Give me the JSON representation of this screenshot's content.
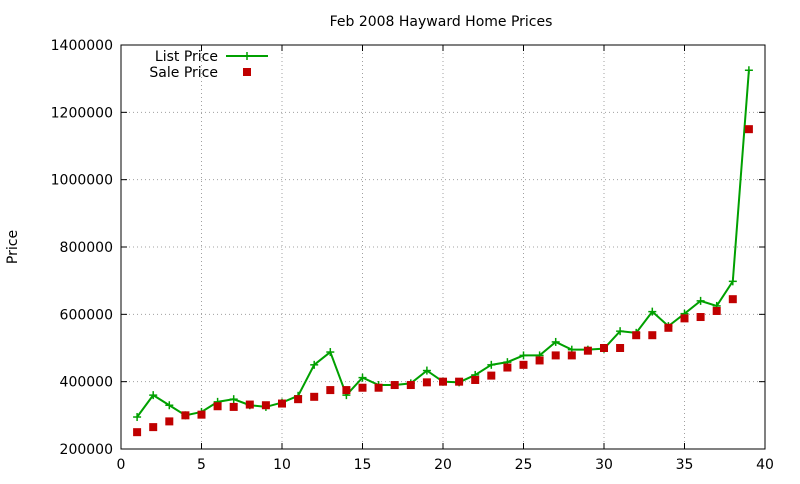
{
  "chart_data": {
    "type": "line",
    "title": "Feb 2008 Hayward Home Prices",
    "xlabel": "",
    "ylabel": "Price",
    "xlim": [
      0,
      40
    ],
    "ylim": [
      200000,
      1400000
    ],
    "x_ticks": [
      0,
      5,
      10,
      15,
      20,
      25,
      30,
      35,
      40
    ],
    "y_ticks": [
      200000,
      400000,
      600000,
      800000,
      1000000,
      1200000,
      1400000
    ],
    "grid": true,
    "legend_position": "top-left",
    "x": [
      1,
      2,
      3,
      4,
      5,
      6,
      7,
      8,
      9,
      10,
      11,
      12,
      13,
      14,
      15,
      16,
      17,
      18,
      19,
      20,
      21,
      22,
      23,
      24,
      25,
      26,
      27,
      28,
      29,
      30,
      31,
      32,
      33,
      34,
      35,
      36,
      37,
      38,
      39
    ],
    "series": [
      {
        "name": "List Price",
        "style": "linespoints",
        "marker": "plus",
        "color": "#00a000",
        "values": [
          295000,
          360000,
          330000,
          300000,
          310000,
          340000,
          348000,
          330000,
          325000,
          338000,
          358000,
          450000,
          488000,
          360000,
          412000,
          390000,
          390000,
          395000,
          433000,
          400000,
          398000,
          420000,
          450000,
          458000,
          478000,
          478000,
          518000,
          495000,
          495000,
          498000,
          550000,
          545000,
          608000,
          565000,
          602000,
          640000,
          625000,
          698000,
          1325000
        ]
      },
      {
        "name": "Sale Price",
        "style": "points",
        "marker": "square",
        "color": "#c00000",
        "values": [
          250000,
          265000,
          282000,
          300000,
          302000,
          327000,
          325000,
          332000,
          330000,
          335000,
          348000,
          355000,
          375000,
          375000,
          382000,
          382000,
          390000,
          390000,
          398000,
          400000,
          400000,
          405000,
          418000,
          442000,
          450000,
          463000,
          478000,
          478000,
          492000,
          500000,
          500000,
          538000,
          538000,
          560000,
          588000,
          592000,
          610000,
          645000,
          1150000
        ]
      }
    ]
  }
}
